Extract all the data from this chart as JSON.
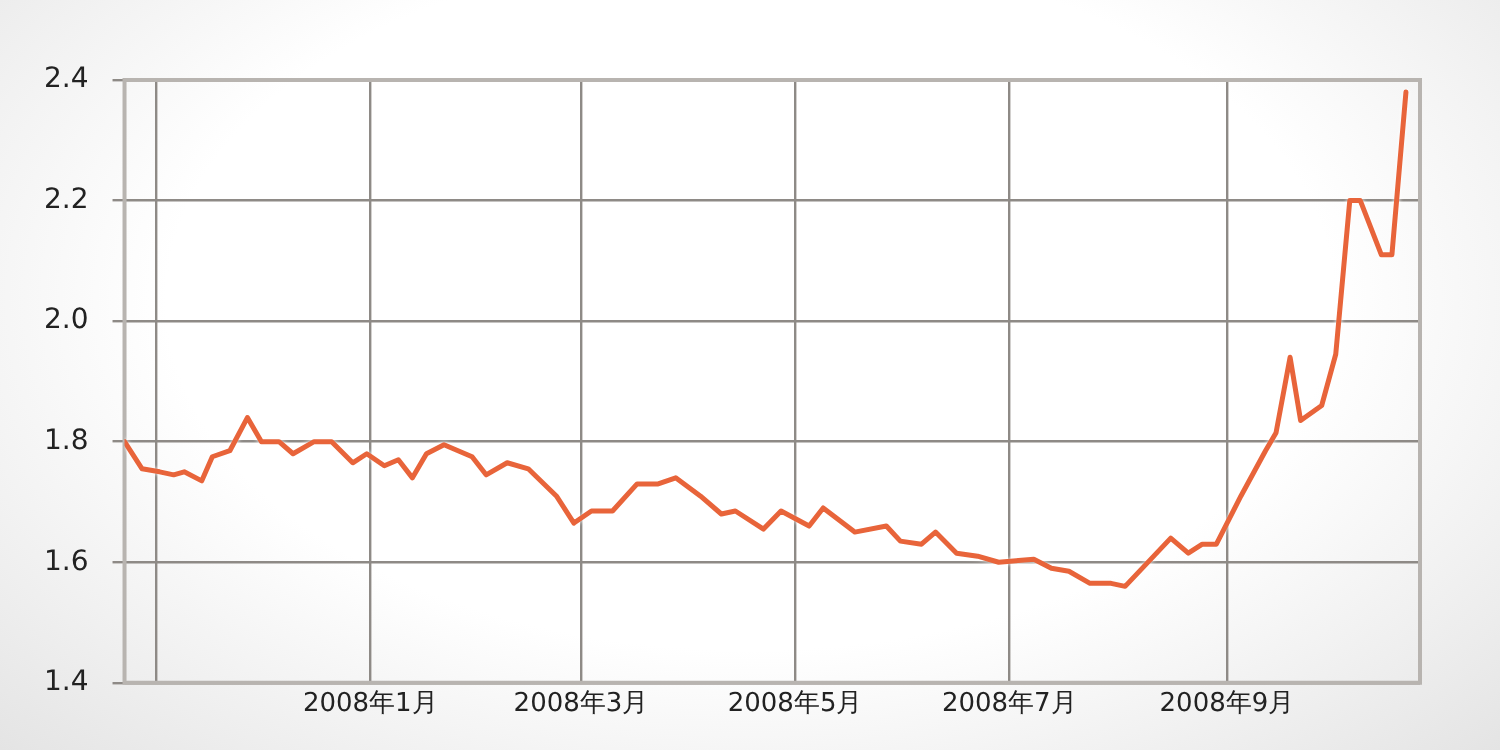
{
  "chart_data": {
    "type": "line",
    "x": [
      "2007-10-23",
      "2007-10-28",
      "2007-11-02",
      "2007-11-06",
      "2007-11-09",
      "2007-11-14",
      "2007-11-17",
      "2007-11-22",
      "2007-11-27",
      "2007-12-01",
      "2007-12-06",
      "2007-12-10",
      "2007-12-16",
      "2007-12-21",
      "2007-12-27",
      "2007-12-31",
      "2008-01-05",
      "2008-01-09",
      "2008-01-13",
      "2008-01-17",
      "2008-01-22",
      "2008-01-30",
      "2008-02-03",
      "2008-02-09",
      "2008-02-15",
      "2008-02-23",
      "2008-02-28",
      "2008-03-04",
      "2008-03-10",
      "2008-03-17",
      "2008-03-23",
      "2008-03-28",
      "2008-04-04",
      "2008-04-10",
      "2008-04-14",
      "2008-04-22",
      "2008-04-27",
      "2008-05-05",
      "2008-05-09",
      "2008-05-18",
      "2008-05-27",
      "2008-05-31",
      "2008-06-06",
      "2008-06-10",
      "2008-06-16",
      "2008-06-22",
      "2008-06-28",
      "2008-07-08",
      "2008-07-13",
      "2008-07-18",
      "2008-07-24",
      "2008-07-30",
      "2008-08-03",
      "2008-08-16",
      "2008-08-21",
      "2008-08-25",
      "2008-08-29",
      "2008-09-05",
      "2008-09-12",
      "2008-09-15",
      "2008-09-19",
      "2008-09-22",
      "2008-09-28",
      "2008-10-02",
      "2008-10-06",
      "2008-10-09",
      "2008-10-15",
      "2008-10-18",
      "2008-10-22"
    ],
    "series": [
      {
        "color": "#e8643a",
        "values": [
          1.8,
          1.755,
          1.75,
          1.745,
          1.75,
          1.735,
          1.775,
          1.785,
          1.84,
          1.8,
          1.8,
          1.78,
          1.8,
          1.8,
          1.765,
          1.78,
          1.76,
          1.77,
          1.74,
          1.78,
          1.795,
          1.775,
          1.745,
          1.765,
          1.755,
          1.71,
          1.665,
          1.685,
          1.685,
          1.73,
          1.73,
          1.74,
          1.71,
          1.68,
          1.685,
          1.655,
          1.685,
          1.66,
          1.69,
          1.65,
          1.66,
          1.635,
          1.63,
          1.65,
          1.615,
          1.61,
          1.6,
          1.605,
          1.59,
          1.585,
          1.565,
          1.565,
          1.56,
          1.64,
          1.615,
          1.63,
          1.63,
          1.71,
          1.785,
          1.815,
          1.94,
          1.835,
          1.86,
          1.945,
          2.2,
          2.2,
          2.11,
          2.11,
          2.38
        ]
      }
    ],
    "xlim": [
      "2007-10-23",
      "2008-10-26"
    ],
    "xticks": [
      {
        "value": "2007-11-01",
        "label": null
      },
      {
        "value": "2008-01-01",
        "label": "2008年1月"
      },
      {
        "value": "2008-03-01",
        "label": "2008年3月"
      },
      {
        "value": "2008-05-01",
        "label": "2008年5月"
      },
      {
        "value": "2008-07-01",
        "label": "2008年7月"
      },
      {
        "value": "2008-09-01",
        "label": "2008年9月"
      }
    ],
    "ylim": [
      1.4,
      2.4
    ],
    "yticks": [
      1.4,
      1.6,
      1.8,
      {
        "value": 2,
        "label": "2.0"
      },
      2.2,
      2.4
    ],
    "grid": true,
    "legend": false,
    "marker": "none",
    "line_style": "solid"
  }
}
